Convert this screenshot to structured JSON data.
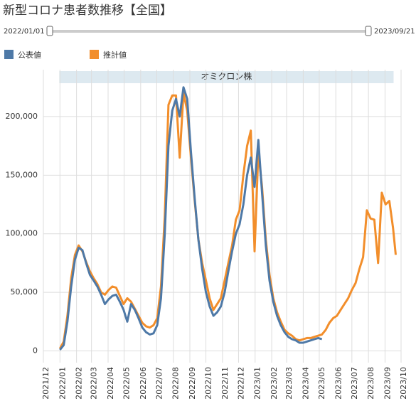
{
  "chart_data": {
    "type": "line",
    "title": "新型コロナ患者数推移【全国】",
    "slider": {
      "start": "2022/01/01",
      "end": "2023/09/21"
    },
    "annotation": "オミクロン株",
    "xlim": [
      "2021/12/01",
      "2023/10/01"
    ],
    "xticks": [
      {
        "value": "2021/12/01",
        "label": "2021/12"
      },
      {
        "value": "2022/01/01",
        "label": "2022/01"
      },
      {
        "value": "2022/02/01",
        "label": "2022/02"
      },
      {
        "value": "2022/03/01",
        "label": "2022/03"
      },
      {
        "value": "2022/04/01",
        "label": "2022/04"
      },
      {
        "value": "2022/05/01",
        "label": "2022/05"
      },
      {
        "value": "2022/06/01",
        "label": "2022/06"
      },
      {
        "value": "2022/07/01",
        "label": "2022/07"
      },
      {
        "value": "2022/08/01",
        "label": "2022/08"
      },
      {
        "value": "2022/09/01",
        "label": "2022/09"
      },
      {
        "value": "2022/10/01",
        "label": "2022/10"
      },
      {
        "value": "2022/11/01",
        "label": "2022/11"
      },
      {
        "value": "2022/12/01",
        "label": "2022/12"
      },
      {
        "value": "2023/01/01",
        "label": "2023/01"
      },
      {
        "value": "2023/02/01",
        "label": "2023/02"
      },
      {
        "value": "2023/03/01",
        "label": "2023/03"
      },
      {
        "value": "2023/04/01",
        "label": "2023/04"
      },
      {
        "value": "2023/05/01",
        "label": "2023/05"
      },
      {
        "value": "2023/06/01",
        "label": "2023/06"
      },
      {
        "value": "2023/07/01",
        "label": "2023/07"
      },
      {
        "value": "2023/08/01",
        "label": "2023/08"
      },
      {
        "value": "2023/09/01",
        "label": "2023/09"
      },
      {
        "value": "2023/10/01",
        "label": "2023/10"
      }
    ],
    "ylim": [
      -10000,
      240000
    ],
    "yticks": [
      {
        "value": 0,
        "label": "0"
      },
      {
        "value": 50000,
        "label": "50,000"
      },
      {
        "value": 100000,
        "label": "100,000"
      },
      {
        "value": 150000,
        "label": "150,000"
      },
      {
        "value": 200000,
        "label": "200,000"
      }
    ],
    "grid": true,
    "series": [
      {
        "name": "推計値",
        "color": "#f28e2b",
        "x": [
          "2022/01/01",
          "2022/01/08",
          "2022/01/15",
          "2022/01/22",
          "2022/01/29",
          "2022/02/05",
          "2022/02/12",
          "2022/02/19",
          "2022/02/26",
          "2022/03/05",
          "2022/03/12",
          "2022/03/19",
          "2022/03/26",
          "2022/04/02",
          "2022/04/09",
          "2022/04/16",
          "2022/04/23",
          "2022/04/30",
          "2022/05/07",
          "2022/05/14",
          "2022/05/21",
          "2022/05/28",
          "2022/06/04",
          "2022/06/11",
          "2022/06/18",
          "2022/06/25",
          "2022/07/02",
          "2022/07/09",
          "2022/07/16",
          "2022/07/23",
          "2022/07/30",
          "2022/08/06",
          "2022/08/13",
          "2022/08/20",
          "2022/08/27",
          "2022/09/03",
          "2022/09/10",
          "2022/09/17",
          "2022/09/24",
          "2022/10/01",
          "2022/10/08",
          "2022/10/15",
          "2022/10/22",
          "2022/10/29",
          "2022/11/05",
          "2022/11/12",
          "2022/11/19",
          "2022/11/26",
          "2022/12/03",
          "2022/12/10",
          "2022/12/17",
          "2022/12/24",
          "2022/12/31",
          "2023/01/07",
          "2023/01/14",
          "2023/01/21",
          "2023/01/28",
          "2023/02/04",
          "2023/02/11",
          "2023/02/18",
          "2023/02/25",
          "2023/03/04",
          "2023/03/11",
          "2023/03/18",
          "2023/03/25",
          "2023/04/01",
          "2023/04/08",
          "2023/04/15",
          "2023/04/22",
          "2023/04/29",
          "2023/05/06",
          "2023/05/13",
          "2023/05/20",
          "2023/05/27",
          "2023/06/03",
          "2023/06/10",
          "2023/06/17",
          "2023/06/24",
          "2023/07/01",
          "2023/07/08",
          "2023/07/15",
          "2023/07/22",
          "2023/07/29",
          "2023/08/05",
          "2023/08/12",
          "2023/08/19",
          "2023/08/26",
          "2023/09/02",
          "2023/09/09",
          "2023/09/16",
          "2023/09/21"
        ],
        "values": [
          2000,
          8000,
          30000,
          62000,
          82000,
          90000,
          85000,
          76000,
          68000,
          62000,
          57000,
          50000,
          48000,
          52000,
          55000,
          54000,
          47000,
          40000,
          45000,
          42000,
          36000,
          30000,
          24000,
          21000,
          20000,
          22000,
          28000,
          55000,
          115000,
          210000,
          218000,
          218000,
          165000,
          220000,
          205000,
          165000,
          128000,
          95000,
          75000,
          60000,
          45000,
          35000,
          40000,
          45000,
          60000,
          75000,
          90000,
          112000,
          120000,
          150000,
          175000,
          188000,
          85000,
          170000,
          140000,
          95000,
          65000,
          45000,
          33000,
          25000,
          18000,
          15000,
          13000,
          10000,
          9000,
          10000,
          11000,
          11000,
          12000,
          13000,
          14000,
          18000,
          24000,
          28000,
          30000,
          35000,
          40000,
          45000,
          52000,
          58000,
          70000,
          80000,
          120000,
          113000,
          112000,
          75000,
          135000,
          125000,
          128000,
          105000,
          82000
        ]
      },
      {
        "name": "公表値",
        "color": "#4e79a7",
        "x": [
          "2022/01/01",
          "2022/01/08",
          "2022/01/15",
          "2022/01/22",
          "2022/01/29",
          "2022/02/05",
          "2022/02/12",
          "2022/02/19",
          "2022/02/26",
          "2022/03/05",
          "2022/03/12",
          "2022/03/19",
          "2022/03/26",
          "2022/04/02",
          "2022/04/09",
          "2022/04/16",
          "2022/04/23",
          "2022/04/30",
          "2022/05/07",
          "2022/05/14",
          "2022/05/21",
          "2022/05/28",
          "2022/06/04",
          "2022/06/11",
          "2022/06/18",
          "2022/06/25",
          "2022/07/02",
          "2022/07/09",
          "2022/07/16",
          "2022/07/23",
          "2022/07/30",
          "2022/08/06",
          "2022/08/13",
          "2022/08/20",
          "2022/08/27",
          "2022/09/03",
          "2022/09/10",
          "2022/09/17",
          "2022/09/24",
          "2022/10/01",
          "2022/10/08",
          "2022/10/15",
          "2022/10/22",
          "2022/10/29",
          "2022/11/05",
          "2022/11/12",
          "2022/11/19",
          "2022/11/26",
          "2022/12/03",
          "2022/12/10",
          "2022/12/17",
          "2022/12/24",
          "2022/12/31",
          "2023/01/07",
          "2023/01/14",
          "2023/01/21",
          "2023/01/28",
          "2023/02/04",
          "2023/02/11",
          "2023/02/18",
          "2023/02/25",
          "2023/03/04",
          "2023/03/11",
          "2023/03/18",
          "2023/03/25",
          "2023/04/01",
          "2023/04/08",
          "2023/04/15",
          "2023/04/22",
          "2023/04/29",
          "2023/05/06"
        ],
        "values": [
          1000,
          5000,
          25000,
          55000,
          78000,
          88000,
          86000,
          75000,
          65000,
          60000,
          55000,
          48000,
          40000,
          44000,
          47000,
          48000,
          42000,
          35000,
          25000,
          40000,
          35000,
          28000,
          20000,
          16000,
          14000,
          15000,
          22000,
          45000,
          100000,
          175000,
          205000,
          215000,
          200000,
          225000,
          215000,
          170000,
          130000,
          95000,
          70000,
          50000,
          38000,
          30000,
          33000,
          38000,
          50000,
          68000,
          85000,
          100000,
          108000,
          125000,
          150000,
          165000,
          140000,
          180000,
          135000,
          90000,
          60000,
          42000,
          30000,
          22000,
          16000,
          12000,
          10000,
          9000,
          7000,
          7000,
          8000,
          9000,
          10000,
          11000,
          10000
        ]
      }
    ]
  }
}
